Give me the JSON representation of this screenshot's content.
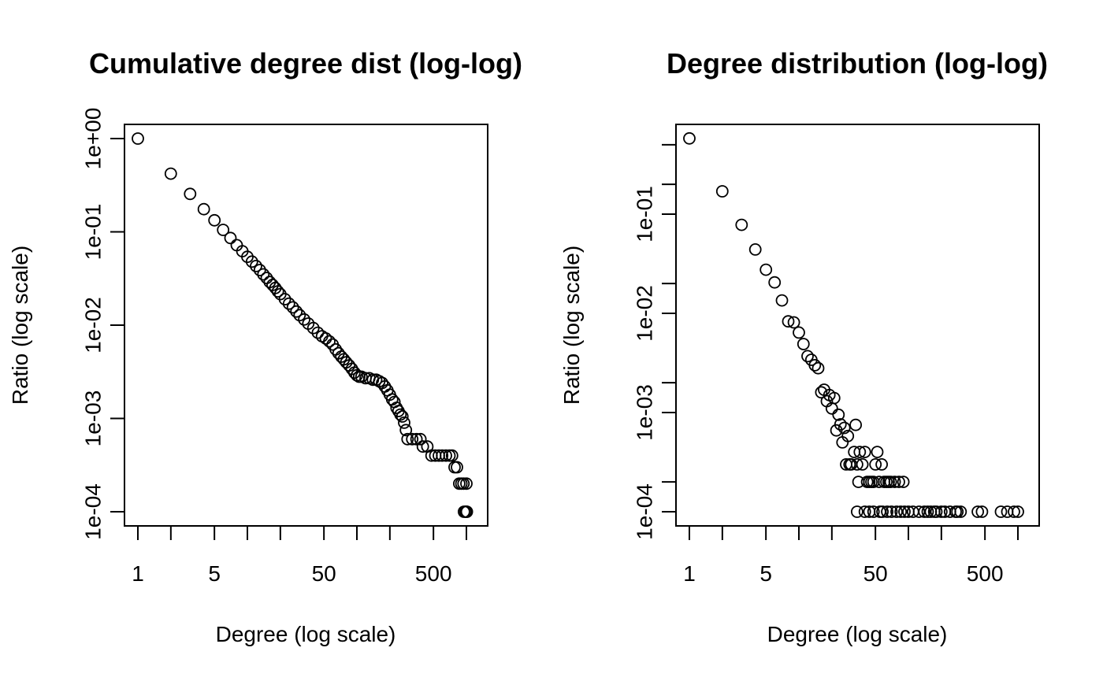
{
  "chart_data": [
    {
      "type": "scatter",
      "title": "Cumulative degree dist (log-log)",
      "xlabel": "Degree (log scale)",
      "ylabel": "Ratio (log scale)",
      "x_scale": "log",
      "y_scale": "log",
      "xlim": [
        1,
        1200
      ],
      "ylim": [
        0.0001,
        1
      ],
      "x_ticks": [
        {
          "value": 1,
          "label": "1"
        },
        {
          "value": 2,
          "label": ""
        },
        {
          "value": 5,
          "label": "5"
        },
        {
          "value": 10,
          "label": ""
        },
        {
          "value": 20,
          "label": ""
        },
        {
          "value": 50,
          "label": "50"
        },
        {
          "value": 100,
          "label": ""
        },
        {
          "value": 200,
          "label": ""
        },
        {
          "value": 500,
          "label": "500"
        },
        {
          "value": 1000,
          "label": ""
        }
      ],
      "y_ticks": [
        {
          "value": 0.0001,
          "label": "1e-04"
        },
        {
          "value": 0.001,
          "label": "1e-03"
        },
        {
          "value": 0.01,
          "label": "1e-02"
        },
        {
          "value": 0.1,
          "label": "1e-01"
        },
        {
          "value": 1,
          "label": "1e+00"
        }
      ],
      "grid": false,
      "legend": "none",
      "points": [
        [
          1,
          1.0
        ],
        [
          2,
          0.42
        ],
        [
          3,
          0.255
        ],
        [
          4,
          0.175
        ],
        [
          5,
          0.133
        ],
        [
          6,
          0.105
        ],
        [
          7,
          0.086
        ],
        [
          8,
          0.072
        ],
        [
          9,
          0.062
        ],
        [
          10,
          0.054
        ],
        [
          11,
          0.048
        ],
        [
          12,
          0.043
        ],
        [
          13,
          0.039
        ],
        [
          14,
          0.035
        ],
        [
          15,
          0.032
        ],
        [
          16,
          0.029
        ],
        [
          17,
          0.027
        ],
        [
          18,
          0.025
        ],
        [
          19,
          0.023
        ],
        [
          20,
          0.0215
        ],
        [
          22,
          0.019
        ],
        [
          24,
          0.017
        ],
        [
          26,
          0.0155
        ],
        [
          28,
          0.014
        ],
        [
          30,
          0.0128
        ],
        [
          33,
          0.0115
        ],
        [
          36,
          0.0104
        ],
        [
          40,
          0.0093
        ],
        [
          44,
          0.0083
        ],
        [
          48,
          0.0076
        ],
        [
          52,
          0.0072
        ],
        [
          56,
          0.0067
        ],
        [
          60,
          0.0062
        ],
        [
          64,
          0.0055
        ],
        [
          68,
          0.005
        ],
        [
          72,
          0.0046
        ],
        [
          76,
          0.0043
        ],
        [
          80,
          0.004
        ],
        [
          85,
          0.0037
        ],
        [
          90,
          0.0034
        ],
        [
          95,
          0.0031
        ],
        [
          100,
          0.0029
        ],
        [
          105,
          0.0028
        ],
        [
          110,
          0.0028
        ],
        [
          120,
          0.0027
        ],
        [
          130,
          0.0027
        ],
        [
          140,
          0.0026
        ],
        [
          150,
          0.0026
        ],
        [
          160,
          0.0025
        ],
        [
          170,
          0.0024
        ],
        [
          180,
          0.0022
        ],
        [
          190,
          0.002
        ],
        [
          200,
          0.0018
        ],
        [
          210,
          0.0016
        ],
        [
          220,
          0.0015
        ],
        [
          230,
          0.0013
        ],
        [
          240,
          0.0012
        ],
        [
          250,
          0.0011
        ],
        [
          260,
          0.00105
        ],
        [
          270,
          0.0009
        ],
        [
          280,
          0.00075
        ],
        [
          290,
          0.0006
        ],
        [
          320,
          0.0006
        ],
        [
          350,
          0.0006
        ],
        [
          380,
          0.0006
        ],
        [
          400,
          0.0005
        ],
        [
          440,
          0.0005
        ],
        [
          480,
          0.0004
        ],
        [
          520,
          0.0004
        ],
        [
          560,
          0.0004
        ],
        [
          600,
          0.0004
        ],
        [
          650,
          0.0004
        ],
        [
          700,
          0.0004
        ],
        [
          740,
          0.0004
        ],
        [
          780,
          0.0003
        ],
        [
          820,
          0.0003
        ],
        [
          860,
          0.0002
        ],
        [
          900,
          0.0002
        ],
        [
          940,
          0.0002
        ],
        [
          1000,
          0.0002
        ],
        [
          950,
          0.0001
        ],
        [
          980,
          0.0001
        ],
        [
          1000,
          0.0001
        ],
        [
          1010,
          0.0001
        ]
      ]
    },
    {
      "type": "scatter",
      "title": "Degree distribution (log-log)",
      "xlabel": "Degree (log scale)",
      "ylabel": "Ratio (log scale)",
      "x_scale": "log",
      "y_scale": "log",
      "xlim": [
        1,
        1200
      ],
      "ylim": [
        0.0001,
        0.5
      ],
      "x_ticks": [
        {
          "value": 1,
          "label": "1"
        },
        {
          "value": 2,
          "label": ""
        },
        {
          "value": 5,
          "label": "5"
        },
        {
          "value": 10,
          "label": ""
        },
        {
          "value": 20,
          "label": ""
        },
        {
          "value": 50,
          "label": "50"
        },
        {
          "value": 100,
          "label": ""
        },
        {
          "value": 200,
          "label": ""
        },
        {
          "value": 500,
          "label": "500"
        },
        {
          "value": 1000,
          "label": ""
        }
      ],
      "y_ticks": [
        {
          "value": 0.0001,
          "label": "1e-04"
        },
        {
          "value": 0.0002,
          "label": ""
        },
        {
          "value": 0.001,
          "label": "1e-03"
        },
        {
          "value": 0.002,
          "label": ""
        },
        {
          "value": 0.01,
          "label": "1e-02"
        },
        {
          "value": 0.02,
          "label": ""
        },
        {
          "value": 0.1,
          "label": "1e-01"
        },
        {
          "value": 0.2,
          "label": ""
        },
        {
          "value": 0.5,
          "label": ""
        }
      ],
      "grid": false,
      "legend": "none",
      "points": [
        [
          1,
          0.58
        ],
        [
          2,
          0.17
        ],
        [
          3,
          0.078
        ],
        [
          4,
          0.044
        ],
        [
          5,
          0.0275
        ],
        [
          6,
          0.0205
        ],
        [
          7,
          0.0135
        ],
        [
          8,
          0.0083
        ],
        [
          9,
          0.0081
        ],
        [
          10,
          0.0064
        ],
        [
          11,
          0.0049
        ],
        [
          12,
          0.0037
        ],
        [
          13,
          0.0034
        ],
        [
          14,
          0.003
        ],
        [
          15,
          0.0028
        ],
        [
          16,
          0.0016
        ],
        [
          17,
          0.0017
        ],
        [
          18,
          0.0013
        ],
        [
          19,
          0.0015
        ],
        [
          20,
          0.0011
        ],
        [
          21,
          0.0014
        ],
        [
          22,
          0.00066
        ],
        [
          23,
          0.00095
        ],
        [
          24,
          0.00076
        ],
        [
          25,
          0.0005
        ],
        [
          26,
          0.0007
        ],
        [
          27,
          0.0003
        ],
        [
          28,
          0.00058
        ],
        [
          29,
          0.0003
        ],
        [
          30,
          0.0003
        ],
        [
          32,
          0.0004
        ],
        [
          33,
          0.00075
        ],
        [
          34,
          0.0003
        ],
        [
          35,
          0.0002
        ],
        [
          36,
          0.0004
        ],
        [
          38,
          0.0003
        ],
        [
          40,
          0.0004
        ],
        [
          42,
          0.0002
        ],
        [
          44,
          0.0002
        ],
        [
          46,
          0.0002
        ],
        [
          48,
          0.0002
        ],
        [
          50,
          0.0003
        ],
        [
          52,
          0.0004
        ],
        [
          54,
          0.0002
        ],
        [
          57,
          0.0003
        ],
        [
          60,
          0.0002
        ],
        [
          63,
          0.0002
        ],
        [
          66,
          0.0002
        ],
        [
          69,
          0.0002
        ],
        [
          75,
          0.0002
        ],
        [
          82,
          0.0002
        ],
        [
          90,
          0.0002
        ],
        [
          34,
          0.0001
        ],
        [
          40,
          0.0001
        ],
        [
          44,
          0.0001
        ],
        [
          48,
          0.0001
        ],
        [
          55,
          0.0001
        ],
        [
          58,
          0.0001
        ],
        [
          64,
          0.0001
        ],
        [
          70,
          0.0001
        ],
        [
          78,
          0.0001
        ],
        [
          85,
          0.0001
        ],
        [
          92,
          0.0001
        ],
        [
          100,
          0.0001
        ],
        [
          110,
          0.0001
        ],
        [
          125,
          0.0001
        ],
        [
          140,
          0.0001
        ],
        [
          150,
          0.0001
        ],
        [
          160,
          0.0001
        ],
        [
          172,
          0.0001
        ],
        [
          180,
          0.0001
        ],
        [
          200,
          0.0001
        ],
        [
          215,
          0.0001
        ],
        [
          240,
          0.0001
        ],
        [
          270,
          0.0001
        ],
        [
          280,
          0.0001
        ],
        [
          300,
          0.0001
        ],
        [
          430,
          0.0001
        ],
        [
          470,
          0.0001
        ],
        [
          700,
          0.0001
        ],
        [
          800,
          0.0001
        ],
        [
          920,
          0.0001
        ],
        [
          1000,
          0.0001
        ]
      ]
    }
  ]
}
